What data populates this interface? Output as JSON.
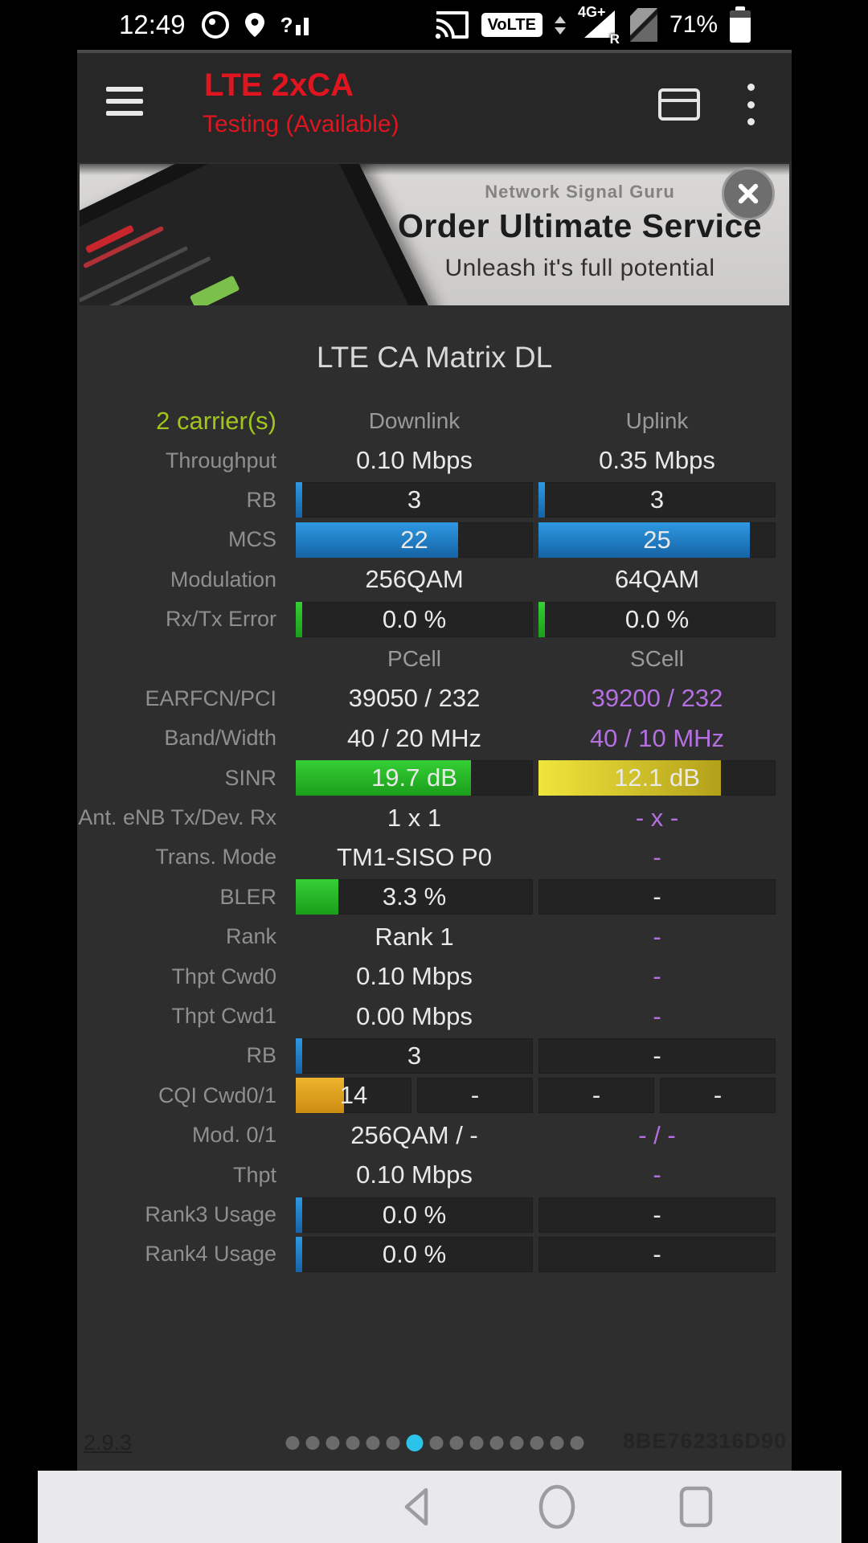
{
  "status_bar": {
    "time": "12:49",
    "volte_label": "VoLTE",
    "network_label": "4G+",
    "roaming_label": "R",
    "battery_pct": "71%"
  },
  "toolbar": {
    "title": "LTE 2xCA",
    "subtitle": "Testing (Available)"
  },
  "ad_banner": {
    "brand": "Network Signal Guru",
    "headline": "Order Ultimate Service",
    "tagline": "Unleash it's full potential"
  },
  "matrix": {
    "title": "LTE CA Matrix DL",
    "rows": [
      {
        "label": "2 carrier(s)",
        "label_class": "green",
        "cells": [
          {
            "t": "Downlink",
            "hdr": 1
          },
          {
            "t": "Uplink",
            "hdr": 1
          }
        ]
      },
      {
        "label": "Throughput",
        "cells": [
          {
            "t": "0.10 Mbps"
          },
          {
            "t": "0.35 Mbps"
          }
        ]
      },
      {
        "label": "RB",
        "cells": [
          {
            "t": "3",
            "track": 1,
            "bar": {
              "c": "blue",
              "f": 0.027
            }
          },
          {
            "t": "3",
            "track": 1,
            "bar": {
              "c": "blue",
              "f": 0.027
            }
          }
        ]
      },
      {
        "label": "MCS",
        "cells": [
          {
            "t": "22",
            "track": 1,
            "bar": {
              "c": "blue",
              "f": 0.685
            }
          },
          {
            "t": "25",
            "track": 1,
            "bar": {
              "c": "blue",
              "f": 0.89
            }
          }
        ]
      },
      {
        "label": "Modulation",
        "cells": [
          {
            "t": "256QAM"
          },
          {
            "t": "64QAM"
          }
        ]
      },
      {
        "label": "Rx/Tx Error",
        "cells": [
          {
            "t": "0.0 %",
            "track": 1,
            "bar": {
              "c": "green",
              "f": 0.027
            }
          },
          {
            "t": "0.0 %",
            "track": 1,
            "bar": {
              "c": "green",
              "f": 0.027
            }
          }
        ]
      },
      {
        "label": "",
        "cells": [
          {
            "t": "PCell",
            "hdr": 1
          },
          {
            "t": "SCell",
            "hdr": 1
          }
        ]
      },
      {
        "label": "EARFCN/PCI",
        "cells": [
          {
            "t": "39050 / 232"
          },
          {
            "t": "39200 / 232",
            "purple": 1
          }
        ]
      },
      {
        "label": "Band/Width",
        "cells": [
          {
            "t": "40 / 20 MHz"
          },
          {
            "t": "40 / 10 MHz",
            "purple": 1
          }
        ]
      },
      {
        "label": "SINR",
        "cells": [
          {
            "t": "19.7 dB",
            "track": 1,
            "bar": {
              "c": "green",
              "f": 0.74
            }
          },
          {
            "t": "12.1 dB",
            "track": 1,
            "bar": {
              "c": "yellow",
              "f": 0.77
            }
          }
        ]
      },
      {
        "label": "Ant. eNB Tx/Dev. Rx",
        "cells": [
          {
            "t": "1 x 1"
          },
          {
            "t": "- x -",
            "purple": 1
          }
        ]
      },
      {
        "label": "Trans. Mode",
        "cells": [
          {
            "t": "TM1-SISO P0"
          },
          {
            "t": "-",
            "purple": 1
          }
        ]
      },
      {
        "label": "BLER",
        "cells": [
          {
            "t": "3.3 %",
            "track": 1,
            "bar": {
              "c": "green",
              "f": 0.18
            }
          },
          {
            "t": "-",
            "track": 1
          }
        ]
      },
      {
        "label": "Rank",
        "cells": [
          {
            "t": "Rank 1"
          },
          {
            "t": "-",
            "purple": 1
          }
        ]
      },
      {
        "label": "Thpt Cwd0",
        "cells": [
          {
            "t": "0.10 Mbps"
          },
          {
            "t": "-",
            "purple": 1
          }
        ]
      },
      {
        "label": "Thpt Cwd1",
        "cells": [
          {
            "t": "0.00 Mbps"
          },
          {
            "t": "-",
            "purple": 1
          }
        ]
      },
      {
        "label": "RB",
        "cells": [
          {
            "t": "3",
            "track": 1,
            "bar": {
              "c": "blue",
              "f": 0.027
            }
          },
          {
            "t": "-",
            "track": 1
          }
        ]
      },
      {
        "label": "CQI Cwd0/1",
        "quarters": true,
        "cells": [
          {
            "t": "14",
            "track": 1,
            "bar": {
              "c": "amber",
              "f": 0.42
            }
          },
          {
            "t": "-",
            "track": 1
          },
          {
            "t": "-",
            "track": 1
          },
          {
            "t": "-",
            "track": 1
          }
        ]
      },
      {
        "label": "Mod. 0/1",
        "cells": [
          {
            "t": "256QAM / -"
          },
          {
            "t": "- / -",
            "purple": 1
          }
        ]
      },
      {
        "label": "Thpt",
        "cells": [
          {
            "t": "0.10 Mbps"
          },
          {
            "t": "-",
            "purple": 1
          }
        ]
      },
      {
        "label": "Rank3 Usage",
        "cells": [
          {
            "t": "0.0 %",
            "track": 1,
            "bar": {
              "c": "blue",
              "f": 0.027
            }
          },
          {
            "t": "-",
            "track": 1
          }
        ]
      },
      {
        "label": "Rank4 Usage",
        "cells": [
          {
            "t": "0.0 %",
            "track": 1,
            "bar": {
              "c": "blue",
              "f": 0.027
            }
          },
          {
            "t": "-",
            "track": 1
          }
        ]
      }
    ]
  },
  "footer": {
    "version": "2.9.3",
    "device_id": "8BE762316D90",
    "page_dots": {
      "total": 15,
      "active_index": 6
    }
  },
  "colors": {
    "accent_red": "#e01520",
    "carrier_green": "#a0c51d",
    "scell_purple": "#b470e0",
    "bar_blue": "#1f87d2",
    "bar_green": "#2cc42c",
    "bar_yellow": "#d8c82e",
    "bar_amber": "#e2a41f",
    "active_dot_cyan": "#2bc3ea"
  }
}
